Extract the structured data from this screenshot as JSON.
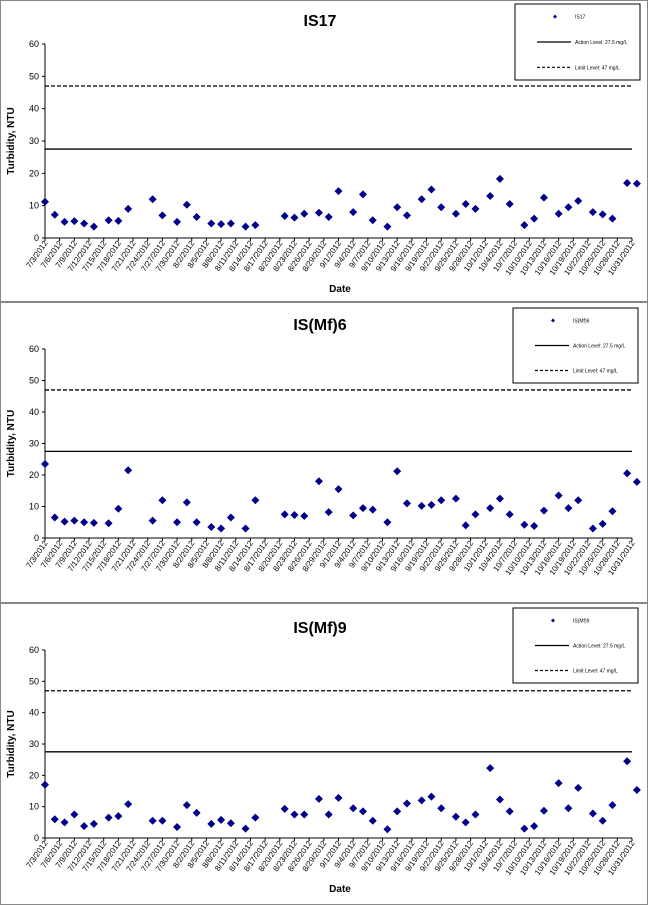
{
  "chart_data": [
    {
      "type": "scatter",
      "title": "IS17",
      "xlabel": "Date",
      "ylabel": "Turbidity, NTU",
      "ylim": [
        0,
        60
      ],
      "yticks": [
        0,
        10,
        20,
        30,
        40,
        50,
        60
      ],
      "xlim": [
        "7/3/2012",
        "10/31/2012"
      ],
      "x_tick_labels": [
        "7/3/2012",
        "7/6/2012",
        "7/9/2012",
        "7/12/2012",
        "7/15/2012",
        "7/18/2012",
        "7/21/2012",
        "7/24/2012",
        "7/27/2012",
        "7/30/2012",
        "8/2/2012",
        "8/5/2012",
        "8/8/2012",
        "8/11/2012",
        "8/14/2012",
        "8/17/2012",
        "8/20/2012",
        "8/23/2012",
        "8/26/2012",
        "8/29/2012",
        "9/1/2012",
        "9/4/2012",
        "9/7/2012",
        "9/10/2012",
        "9/13/2012",
        "9/16/2012",
        "9/19/2012",
        "9/22/2012",
        "9/25/2012",
        "9/28/2012",
        "10/1/2012",
        "10/4/2012",
        "10/7/2012",
        "10/10/2012",
        "10/13/2012",
        "10/16/2012",
        "10/19/2012",
        "10/22/2012",
        "10/25/2012",
        "10/28/2012",
        "10/31/2012"
      ],
      "series": [
        {
          "name": "IS17",
          "kind": "points",
          "color": "#00008B",
          "points": [
            [
              "7/3/2012",
              11.2
            ],
            [
              "7/5/2012",
              7.2
            ],
            [
              "7/7/2012",
              5.0
            ],
            [
              "7/9/2012",
              5.2
            ],
            [
              "7/11/2012",
              4.5
            ],
            [
              "7/13/2012",
              3.5
            ],
            [
              "7/16/2012",
              5.5
            ],
            [
              "7/18/2012",
              5.3
            ],
            [
              "7/20/2012",
              9.0
            ],
            [
              "7/25/2012",
              12.0
            ],
            [
              "7/27/2012",
              7.0
            ],
            [
              "7/30/2012",
              5.0
            ],
            [
              "8/1/2012",
              10.3
            ],
            [
              "8/3/2012",
              6.5
            ],
            [
              "8/6/2012",
              4.5
            ],
            [
              "8/8/2012",
              4.3
            ],
            [
              "8/10/2012",
              4.5
            ],
            [
              "8/13/2012",
              3.5
            ],
            [
              "8/15/2012",
              4.0
            ],
            [
              "8/21/2012",
              6.8
            ],
            [
              "8/23/2012",
              6.3
            ],
            [
              "8/25/2012",
              7.5
            ],
            [
              "8/28/2012",
              7.8
            ],
            [
              "8/30/2012",
              6.5
            ],
            [
              "9/1/2012",
              14.5
            ],
            [
              "9/4/2012",
              8.0
            ],
            [
              "9/6/2012",
              13.5
            ],
            [
              "9/8/2012",
              5.5
            ],
            [
              "9/11/2012",
              3.5
            ],
            [
              "9/13/2012",
              9.5
            ],
            [
              "9/15/2012",
              7.0
            ],
            [
              "9/18/2012",
              12.0
            ],
            [
              "9/20/2012",
              15.0
            ],
            [
              "9/22/2012",
              9.5
            ],
            [
              "9/25/2012",
              7.5
            ],
            [
              "9/27/2012",
              10.5
            ],
            [
              "9/29/2012",
              9.0
            ],
            [
              "10/2/2012",
              13.0
            ],
            [
              "10/4/2012",
              18.3
            ],
            [
              "10/6/2012",
              10.5
            ],
            [
              "10/9/2012",
              4.0
            ],
            [
              "10/11/2012",
              6.0
            ],
            [
              "10/13/2012",
              12.5
            ],
            [
              "10/16/2012",
              7.5
            ],
            [
              "10/18/2012",
              9.5
            ],
            [
              "10/20/2012",
              11.5
            ],
            [
              "10/23/2012",
              8.0
            ],
            [
              "10/25/2012",
              7.3
            ],
            [
              "10/27/2012",
              6.0
            ],
            [
              "10/30/2012",
              17.0
            ],
            [
              "11/1/2012",
              16.8
            ]
          ]
        },
        {
          "name": "Action Level: 27.5 mg/L",
          "kind": "solid",
          "value": 27.5
        },
        {
          "name": "Limit Level: 47 mg/L",
          "kind": "dashed",
          "value": 47
        }
      ]
    },
    {
      "type": "scatter",
      "title": "IS(Mf)6",
      "xlabel": "",
      "ylabel": "Turbidity, NTU",
      "ylim": [
        0,
        60
      ],
      "yticks": [
        0,
        10,
        20,
        30,
        40,
        50,
        60
      ],
      "xlim": [
        "7/3/2012",
        "10/31/2012"
      ],
      "x_tick_labels": [
        "7/3/2012",
        "7/6/2012",
        "7/9/2012",
        "7/12/2012",
        "7/15/2012",
        "7/18/2012",
        "7/21/2012",
        "7/24/2012",
        "7/27/2012",
        "7/30/2012",
        "8/2/2012",
        "8/5/2012",
        "8/8/2012",
        "8/11/2012",
        "8/14/2012",
        "8/17/2012",
        "8/20/2012",
        "8/23/2012",
        "8/26/2012",
        "8/29/2012",
        "9/1/2012",
        "9/4/2012",
        "9/7/2012",
        "9/10/2012",
        "9/13/2012",
        "9/16/2012",
        "9/19/2012",
        "9/22/2012",
        "9/25/2012",
        "9/28/2012",
        "10/1/2012",
        "10/4/2012",
        "10/7/2012",
        "10/10/2012",
        "10/13/2012",
        "10/16/2012",
        "10/19/2012",
        "10/22/2012",
        "10/25/2012",
        "10/28/2012",
        "10/31/2012"
      ],
      "series": [
        {
          "name": "IS(Mf)6",
          "kind": "points",
          "color": "#00008B",
          "points": [
            [
              "7/3/2012",
              23.5
            ],
            [
              "7/5/2012",
              6.5
            ],
            [
              "7/7/2012",
              5.2
            ],
            [
              "7/9/2012",
              5.5
            ],
            [
              "7/11/2012",
              5.0
            ],
            [
              "7/13/2012",
              4.8
            ],
            [
              "7/16/2012",
              4.7
            ],
            [
              "7/18/2012",
              9.3
            ],
            [
              "7/20/2012",
              21.5
            ],
            [
              "7/25/2012",
              5.5
            ],
            [
              "7/27/2012",
              12.0
            ],
            [
              "7/30/2012",
              5.0
            ],
            [
              "8/1/2012",
              11.3
            ],
            [
              "8/3/2012",
              5.0
            ],
            [
              "8/6/2012",
              3.5
            ],
            [
              "8/8/2012",
              3.0
            ],
            [
              "8/10/2012",
              6.5
            ],
            [
              "8/13/2012",
              3.0
            ],
            [
              "8/15/2012",
              12.0
            ],
            [
              "8/21/2012",
              7.5
            ],
            [
              "8/23/2012",
              7.3
            ],
            [
              "8/25/2012",
              7.0
            ],
            [
              "8/28/2012",
              18.0
            ],
            [
              "8/30/2012",
              8.2
            ],
            [
              "9/1/2012",
              15.5
            ],
            [
              "9/4/2012",
              7.2
            ],
            [
              "9/6/2012",
              9.5
            ],
            [
              "9/8/2012",
              9.0
            ],
            [
              "9/11/2012",
              5.0
            ],
            [
              "9/13/2012",
              21.2
            ],
            [
              "9/15/2012",
              11.0
            ],
            [
              "9/18/2012",
              10.2
            ],
            [
              "9/20/2012",
              10.5
            ],
            [
              "9/22/2012",
              12.0
            ],
            [
              "9/25/2012",
              12.5
            ],
            [
              "9/27/2012",
              4.0
            ],
            [
              "9/29/2012",
              7.5
            ],
            [
              "10/2/2012",
              9.5
            ],
            [
              "10/4/2012",
              12.5
            ],
            [
              "10/6/2012",
              7.5
            ],
            [
              "10/9/2012",
              4.2
            ],
            [
              "10/11/2012",
              3.8
            ],
            [
              "10/13/2012",
              8.7
            ],
            [
              "10/16/2012",
              13.5
            ],
            [
              "10/18/2012",
              9.5
            ],
            [
              "10/20/2012",
              12.0
            ],
            [
              "10/23/2012",
              3.0
            ],
            [
              "10/25/2012",
              4.5
            ],
            [
              "10/27/2012",
              8.5
            ],
            [
              "10/30/2012",
              20.5
            ],
            [
              "11/1/2012",
              17.8
            ]
          ]
        },
        {
          "name": "Action Level: 27.5 mg/L",
          "kind": "solid",
          "value": 27.5
        },
        {
          "name": "Limit Level: 47 mg/L",
          "kind": "dashed",
          "value": 47
        }
      ]
    },
    {
      "type": "scatter",
      "title": "IS(Mf)9",
      "xlabel": "Date",
      "ylabel": "Turbidity, NTU",
      "ylim": [
        0,
        60
      ],
      "yticks": [
        0,
        10,
        20,
        30,
        40,
        50,
        60
      ],
      "xlim": [
        "7/3/2012",
        "10/31/2012"
      ],
      "x_tick_labels": [
        "7/3/2012",
        "7/6/2012",
        "7/9/2012",
        "7/12/2012",
        "7/15/2012",
        "7/18/2012",
        "7/21/2012",
        "7/24/2012",
        "7/27/2012",
        "7/30/2012",
        "8/2/2012",
        "8/5/2012",
        "8/8/2012",
        "8/11/2012",
        "8/14/2012",
        "8/17/2012",
        "8/20/2012",
        "8/23/2012",
        "8/26/2012",
        "8/29/2012",
        "9/1/2012",
        "9/4/2012",
        "9/7/2012",
        "9/10/2012",
        "9/13/2012",
        "9/16/2012",
        "9/19/2012",
        "9/22/2012",
        "9/25/2012",
        "9/28/2012",
        "10/1/2012",
        "10/4/2012",
        "10/7/2012",
        "10/10/2012",
        "10/13/2012",
        "10/16/2012",
        "10/19/2012",
        "10/22/2012",
        "10/25/2012",
        "10/28/2012",
        "10/31/2012"
      ],
      "series": [
        {
          "name": "IS(Mf)9",
          "kind": "points",
          "color": "#00008B",
          "points": [
            [
              "7/3/2012",
              17.0
            ],
            [
              "7/5/2012",
              6.0
            ],
            [
              "7/7/2012",
              5.0
            ],
            [
              "7/9/2012",
              7.5
            ],
            [
              "7/11/2012",
              3.8
            ],
            [
              "7/13/2012",
              4.5
            ],
            [
              "7/16/2012",
              6.5
            ],
            [
              "7/18/2012",
              7.0
            ],
            [
              "7/20/2012",
              10.8
            ],
            [
              "7/25/2012",
              5.5
            ],
            [
              "7/27/2012",
              5.5
            ],
            [
              "7/30/2012",
              3.5
            ],
            [
              "8/1/2012",
              10.5
            ],
            [
              "8/3/2012",
              8.0
            ],
            [
              "8/6/2012",
              4.5
            ],
            [
              "8/8/2012",
              5.8
            ],
            [
              "8/10/2012",
              4.7
            ],
            [
              "8/13/2012",
              3.0
            ],
            [
              "8/15/2012",
              6.5
            ],
            [
              "8/21/2012",
              9.3
            ],
            [
              "8/23/2012",
              7.5
            ],
            [
              "8/25/2012",
              7.5
            ],
            [
              "8/28/2012",
              12.5
            ],
            [
              "8/30/2012",
              7.5
            ],
            [
              "9/1/2012",
              12.8
            ],
            [
              "9/4/2012",
              9.5
            ],
            [
              "9/6/2012",
              8.5
            ],
            [
              "9/8/2012",
              5.5
            ],
            [
              "9/11/2012",
              2.8
            ],
            [
              "9/13/2012",
              8.5
            ],
            [
              "9/15/2012",
              11.0
            ],
            [
              "9/18/2012",
              12.0
            ],
            [
              "9/20/2012",
              13.2
            ],
            [
              "9/22/2012",
              9.5
            ],
            [
              "9/25/2012",
              6.8
            ],
            [
              "9/27/2012",
              5.0
            ],
            [
              "9/29/2012",
              7.5
            ],
            [
              "10/2/2012",
              22.3
            ],
            [
              "10/4/2012",
              12.3
            ],
            [
              "10/6/2012",
              8.5
            ],
            [
              "10/9/2012",
              3.0
            ],
            [
              "10/11/2012",
              3.8
            ],
            [
              "10/13/2012",
              8.7
            ],
            [
              "10/16/2012",
              17.5
            ],
            [
              "10/18/2012",
              9.5
            ],
            [
              "10/20/2012",
              16.0
            ],
            [
              "10/23/2012",
              7.8
            ],
            [
              "10/25/2012",
              5.5
            ],
            [
              "10/27/2012",
              10.5
            ],
            [
              "10/30/2012",
              24.5
            ],
            [
              "11/1/2012",
              15.3
            ]
          ]
        },
        {
          "name": "Action Level: 27.5 mg/L",
          "kind": "solid",
          "value": 27.5
        },
        {
          "name": "Limit Level: 47 mg/L",
          "kind": "dashed",
          "value": 47
        }
      ]
    }
  ]
}
